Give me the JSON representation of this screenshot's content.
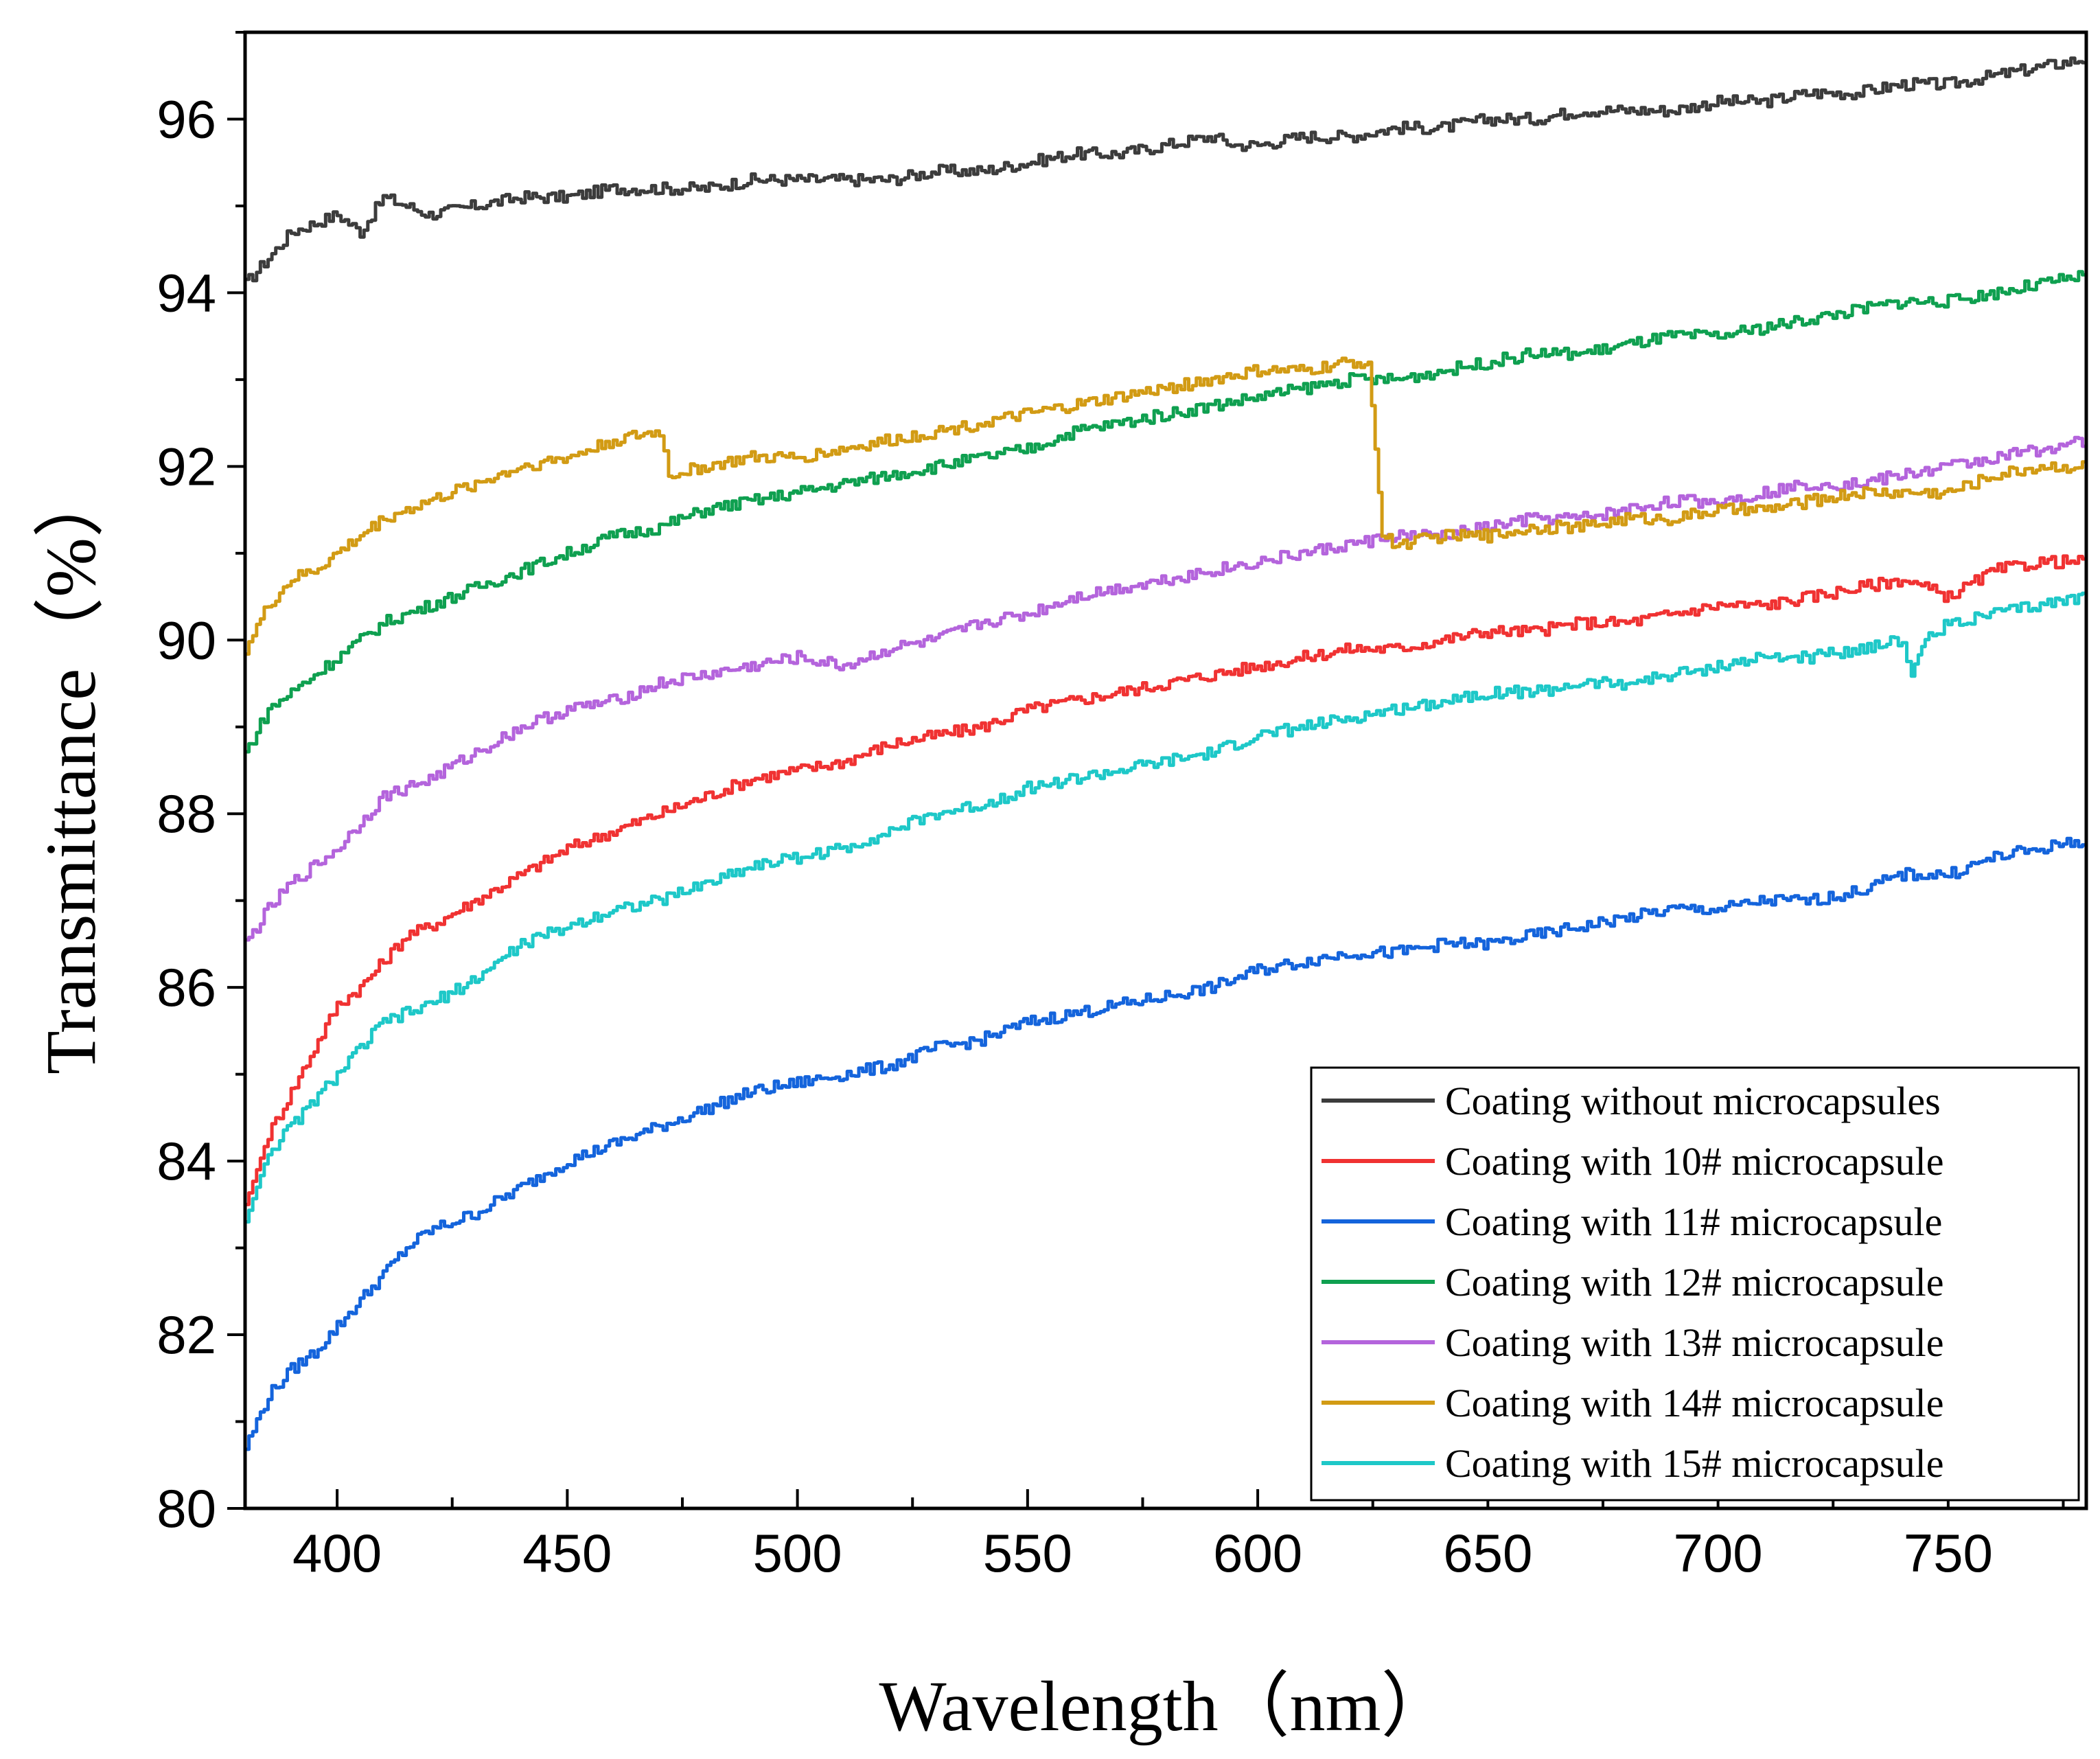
{
  "chart_data": {
    "type": "line",
    "title": "",
    "xlabel": "Wavelength（nm）",
    "ylabel": "Transmittance（%）",
    "xlim": [
      380,
      780
    ],
    "ylim": [
      80,
      97
    ],
    "xticks": [
      400,
      450,
      500,
      550,
      600,
      650,
      700,
      750
    ],
    "yticks": [
      80,
      82,
      84,
      86,
      88,
      90,
      92,
      94,
      96
    ],
    "grid": false,
    "legend_position": "bottom-right",
    "series": [
      {
        "name": "Coating without microcapsules",
        "color": "#3c3c3c",
        "x": [
          380,
          385,
          390,
          395,
          400,
          405,
          410,
          415,
          420,
          430,
          440,
          450,
          460,
          470,
          480,
          490,
          500,
          510,
          520,
          530,
          540,
          550,
          560,
          570,
          580,
          590,
          595,
          600,
          610,
          620,
          630,
          640,
          650,
          660,
          670,
          680,
          690,
          700,
          710,
          720,
          730,
          740,
          750,
          760,
          770,
          780
        ],
        "y": [
          94.1,
          94.4,
          94.7,
          94.8,
          94.9,
          94.7,
          95.1,
          95.0,
          94.9,
          95.0,
          95.1,
          95.1,
          95.2,
          95.2,
          95.2,
          95.3,
          95.3,
          95.3,
          95.3,
          95.4,
          95.4,
          95.5,
          95.6,
          95.6,
          95.7,
          95.8,
          95.7,
          95.7,
          95.8,
          95.8,
          95.9,
          95.9,
          96.0,
          96.0,
          96.1,
          96.1,
          96.1,
          96.2,
          96.2,
          96.3,
          96.3,
          96.4,
          96.4,
          96.5,
          96.6,
          96.7
        ]
      },
      {
        "name": "Coating with 10# microcapsule",
        "color": "#f03232",
        "x": [
          380,
          385,
          390,
          395,
          400,
          405,
          410,
          415,
          420,
          430,
          440,
          450,
          460,
          470,
          480,
          490,
          500,
          510,
          520,
          530,
          540,
          550,
          560,
          570,
          580,
          590,
          600,
          610,
          620,
          630,
          640,
          650,
          660,
          670,
          680,
          690,
          700,
          710,
          720,
          730,
          740,
          750,
          760,
          770,
          780
        ],
        "y": [
          83.5,
          84.3,
          84.8,
          85.3,
          85.8,
          86.0,
          86.3,
          86.6,
          86.7,
          87.0,
          87.3,
          87.6,
          87.8,
          88.0,
          88.2,
          88.4,
          88.5,
          88.6,
          88.8,
          88.9,
          89.0,
          89.2,
          89.3,
          89.4,
          89.5,
          89.6,
          89.7,
          89.8,
          89.9,
          89.9,
          90.0,
          90.1,
          90.1,
          90.2,
          90.2,
          90.3,
          90.4,
          90.4,
          90.5,
          90.6,
          90.7,
          90.5,
          90.8,
          90.9,
          90.9
        ]
      },
      {
        "name": "Coating with 11# microcapsule",
        "color": "#1464dc",
        "x": [
          380,
          385,
          390,
          395,
          400,
          405,
          410,
          415,
          420,
          430,
          440,
          450,
          460,
          470,
          480,
          490,
          500,
          510,
          520,
          530,
          540,
          550,
          560,
          570,
          580,
          590,
          600,
          610,
          620,
          630,
          640,
          650,
          660,
          670,
          680,
          690,
          700,
          710,
          720,
          730,
          740,
          750,
          760,
          770,
          780
        ],
        "y": [
          80.7,
          81.3,
          81.6,
          81.8,
          82.1,
          82.4,
          82.7,
          83.0,
          83.2,
          83.4,
          83.7,
          84.0,
          84.2,
          84.4,
          84.6,
          84.8,
          84.9,
          85.0,
          85.1,
          85.3,
          85.4,
          85.6,
          85.7,
          85.8,
          85.9,
          86.0,
          86.2,
          86.3,
          86.4,
          86.4,
          86.5,
          86.5,
          86.6,
          86.7,
          86.8,
          86.9,
          86.9,
          87.0,
          87.0,
          87.1,
          87.3,
          87.3,
          87.5,
          87.6,
          87.7
        ]
      },
      {
        "name": "Coating with 12# microcapsule",
        "color": "#0fa050",
        "x": [
          380,
          385,
          390,
          395,
          400,
          405,
          410,
          415,
          420,
          430,
          440,
          450,
          460,
          470,
          480,
          490,
          500,
          510,
          520,
          530,
          540,
          550,
          560,
          570,
          580,
          590,
          600,
          610,
          620,
          630,
          640,
          650,
          660,
          670,
          680,
          690,
          700,
          710,
          720,
          730,
          740,
          750,
          760,
          770,
          780
        ],
        "y": [
          88.7,
          89.2,
          89.4,
          89.6,
          89.8,
          90.0,
          90.2,
          90.3,
          90.4,
          90.6,
          90.8,
          91.0,
          91.2,
          91.3,
          91.5,
          91.6,
          91.7,
          91.8,
          91.9,
          92.0,
          92.1,
          92.2,
          92.4,
          92.5,
          92.6,
          92.7,
          92.8,
          92.9,
          93.0,
          93.0,
          93.1,
          93.2,
          93.3,
          93.3,
          93.4,
          93.5,
          93.5,
          93.6,
          93.7,
          93.8,
          93.9,
          93.9,
          94.0,
          94.1,
          94.2
        ]
      },
      {
        "name": "Coating with 13# microcapsule",
        "color": "#b464dc",
        "x": [
          380,
          385,
          390,
          395,
          400,
          405,
          410,
          415,
          420,
          430,
          440,
          450,
          460,
          470,
          480,
          490,
          500,
          510,
          520,
          530,
          540,
          550,
          560,
          570,
          580,
          590,
          600,
          610,
          620,
          630,
          640,
          650,
          660,
          670,
          680,
          690,
          700,
          710,
          720,
          730,
          740,
          750,
          760,
          770,
          780
        ],
        "y": [
          86.5,
          86.9,
          87.2,
          87.4,
          87.6,
          87.9,
          88.2,
          88.3,
          88.4,
          88.7,
          89.0,
          89.2,
          89.3,
          89.5,
          89.6,
          89.7,
          89.8,
          89.7,
          89.9,
          90.0,
          90.2,
          90.3,
          90.5,
          90.6,
          90.7,
          90.8,
          90.9,
          91.0,
          91.1,
          91.2,
          91.2,
          91.3,
          91.4,
          91.4,
          91.5,
          91.6,
          91.6,
          91.7,
          91.8,
          91.8,
          91.9,
          92.0,
          92.1,
          92.2,
          92.3
        ]
      },
      {
        "name": "Coating with 14# microcapsule",
        "color": "#d29b14",
        "x": [
          380,
          385,
          390,
          395,
          400,
          405,
          410,
          415,
          420,
          430,
          440,
          450,
          460,
          470,
          472,
          480,
          490,
          500,
          510,
          520,
          530,
          540,
          550,
          560,
          570,
          580,
          590,
          600,
          610,
          620,
          624,
          627,
          630,
          640,
          650,
          660,
          670,
          680,
          690,
          700,
          710,
          720,
          730,
          740,
          750,
          760,
          770,
          780
        ],
        "y": [
          89.9,
          90.4,
          90.7,
          90.8,
          91.0,
          91.2,
          91.4,
          91.5,
          91.6,
          91.8,
          92.0,
          92.1,
          92.3,
          92.4,
          91.9,
          92.0,
          92.1,
          92.1,
          92.2,
          92.3,
          92.4,
          92.5,
          92.6,
          92.7,
          92.8,
          92.9,
          93.0,
          93.1,
          93.1,
          93.2,
          93.2,
          91.2,
          91.1,
          91.2,
          91.2,
          91.3,
          91.3,
          91.4,
          91.4,
          91.5,
          91.5,
          91.6,
          91.7,
          91.7,
          91.7,
          91.9,
          92.0,
          92.0
        ]
      },
      {
        "name": "Coating with 15# microcapsule",
        "color": "#1ec8c8",
        "x": [
          380,
          385,
          390,
          395,
          400,
          405,
          410,
          415,
          420,
          430,
          440,
          450,
          460,
          470,
          480,
          490,
          500,
          510,
          520,
          530,
          540,
          550,
          560,
          570,
          580,
          590,
          600,
          610,
          620,
          630,
          640,
          650,
          660,
          670,
          680,
          690,
          700,
          710,
          720,
          730,
          740,
          742,
          745,
          750,
          760,
          770,
          780
        ],
        "y": [
          83.3,
          84.1,
          84.4,
          84.7,
          85.0,
          85.3,
          85.6,
          85.7,
          85.8,
          86.1,
          86.5,
          86.7,
          86.9,
          87.0,
          87.2,
          87.4,
          87.5,
          87.6,
          87.8,
          88.0,
          88.1,
          88.3,
          88.4,
          88.5,
          88.6,
          88.7,
          88.9,
          89.0,
          89.1,
          89.2,
          89.3,
          89.4,
          89.4,
          89.5,
          89.5,
          89.6,
          89.7,
          89.8,
          89.8,
          89.9,
          90.0,
          89.6,
          90.0,
          90.2,
          90.3,
          90.4,
          90.5
        ]
      }
    ]
  }
}
